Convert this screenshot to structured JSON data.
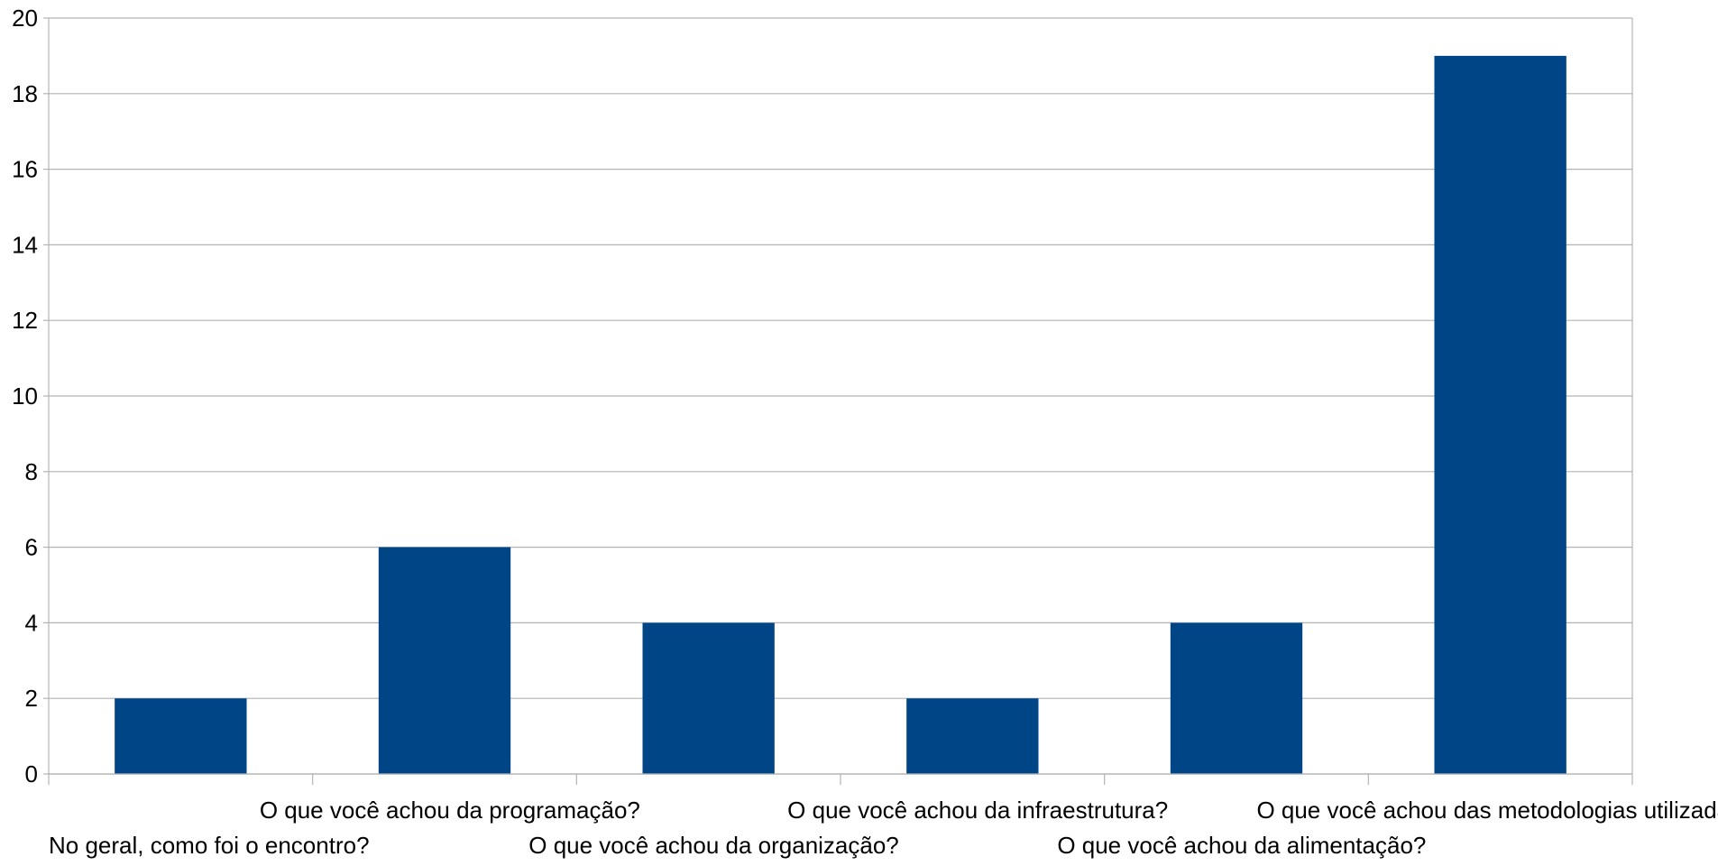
{
  "chart_data": {
    "type": "bar",
    "title": "",
    "xlabel": "",
    "ylabel": "",
    "categories": [
      "No geral, como foi o encontro?",
      "O que você achou da programação?",
      "O que você achou da organização?",
      "O que você achou da infraestrutura?",
      "O que você achou da alimentação?",
      "O que você achou das metodologias utilizadas?"
    ],
    "values": [
      2,
      6,
      4,
      2,
      4,
      19
    ],
    "ylim": [
      0,
      20
    ],
    "yticks": [
      0,
      2,
      4,
      6,
      8,
      10,
      12,
      14,
      16,
      18,
      20
    ],
    "grid": true,
    "legend": "none",
    "colors": {
      "bar": "#004586",
      "grid": "#b3b3b3",
      "axis": "#b3b3b3"
    }
  }
}
